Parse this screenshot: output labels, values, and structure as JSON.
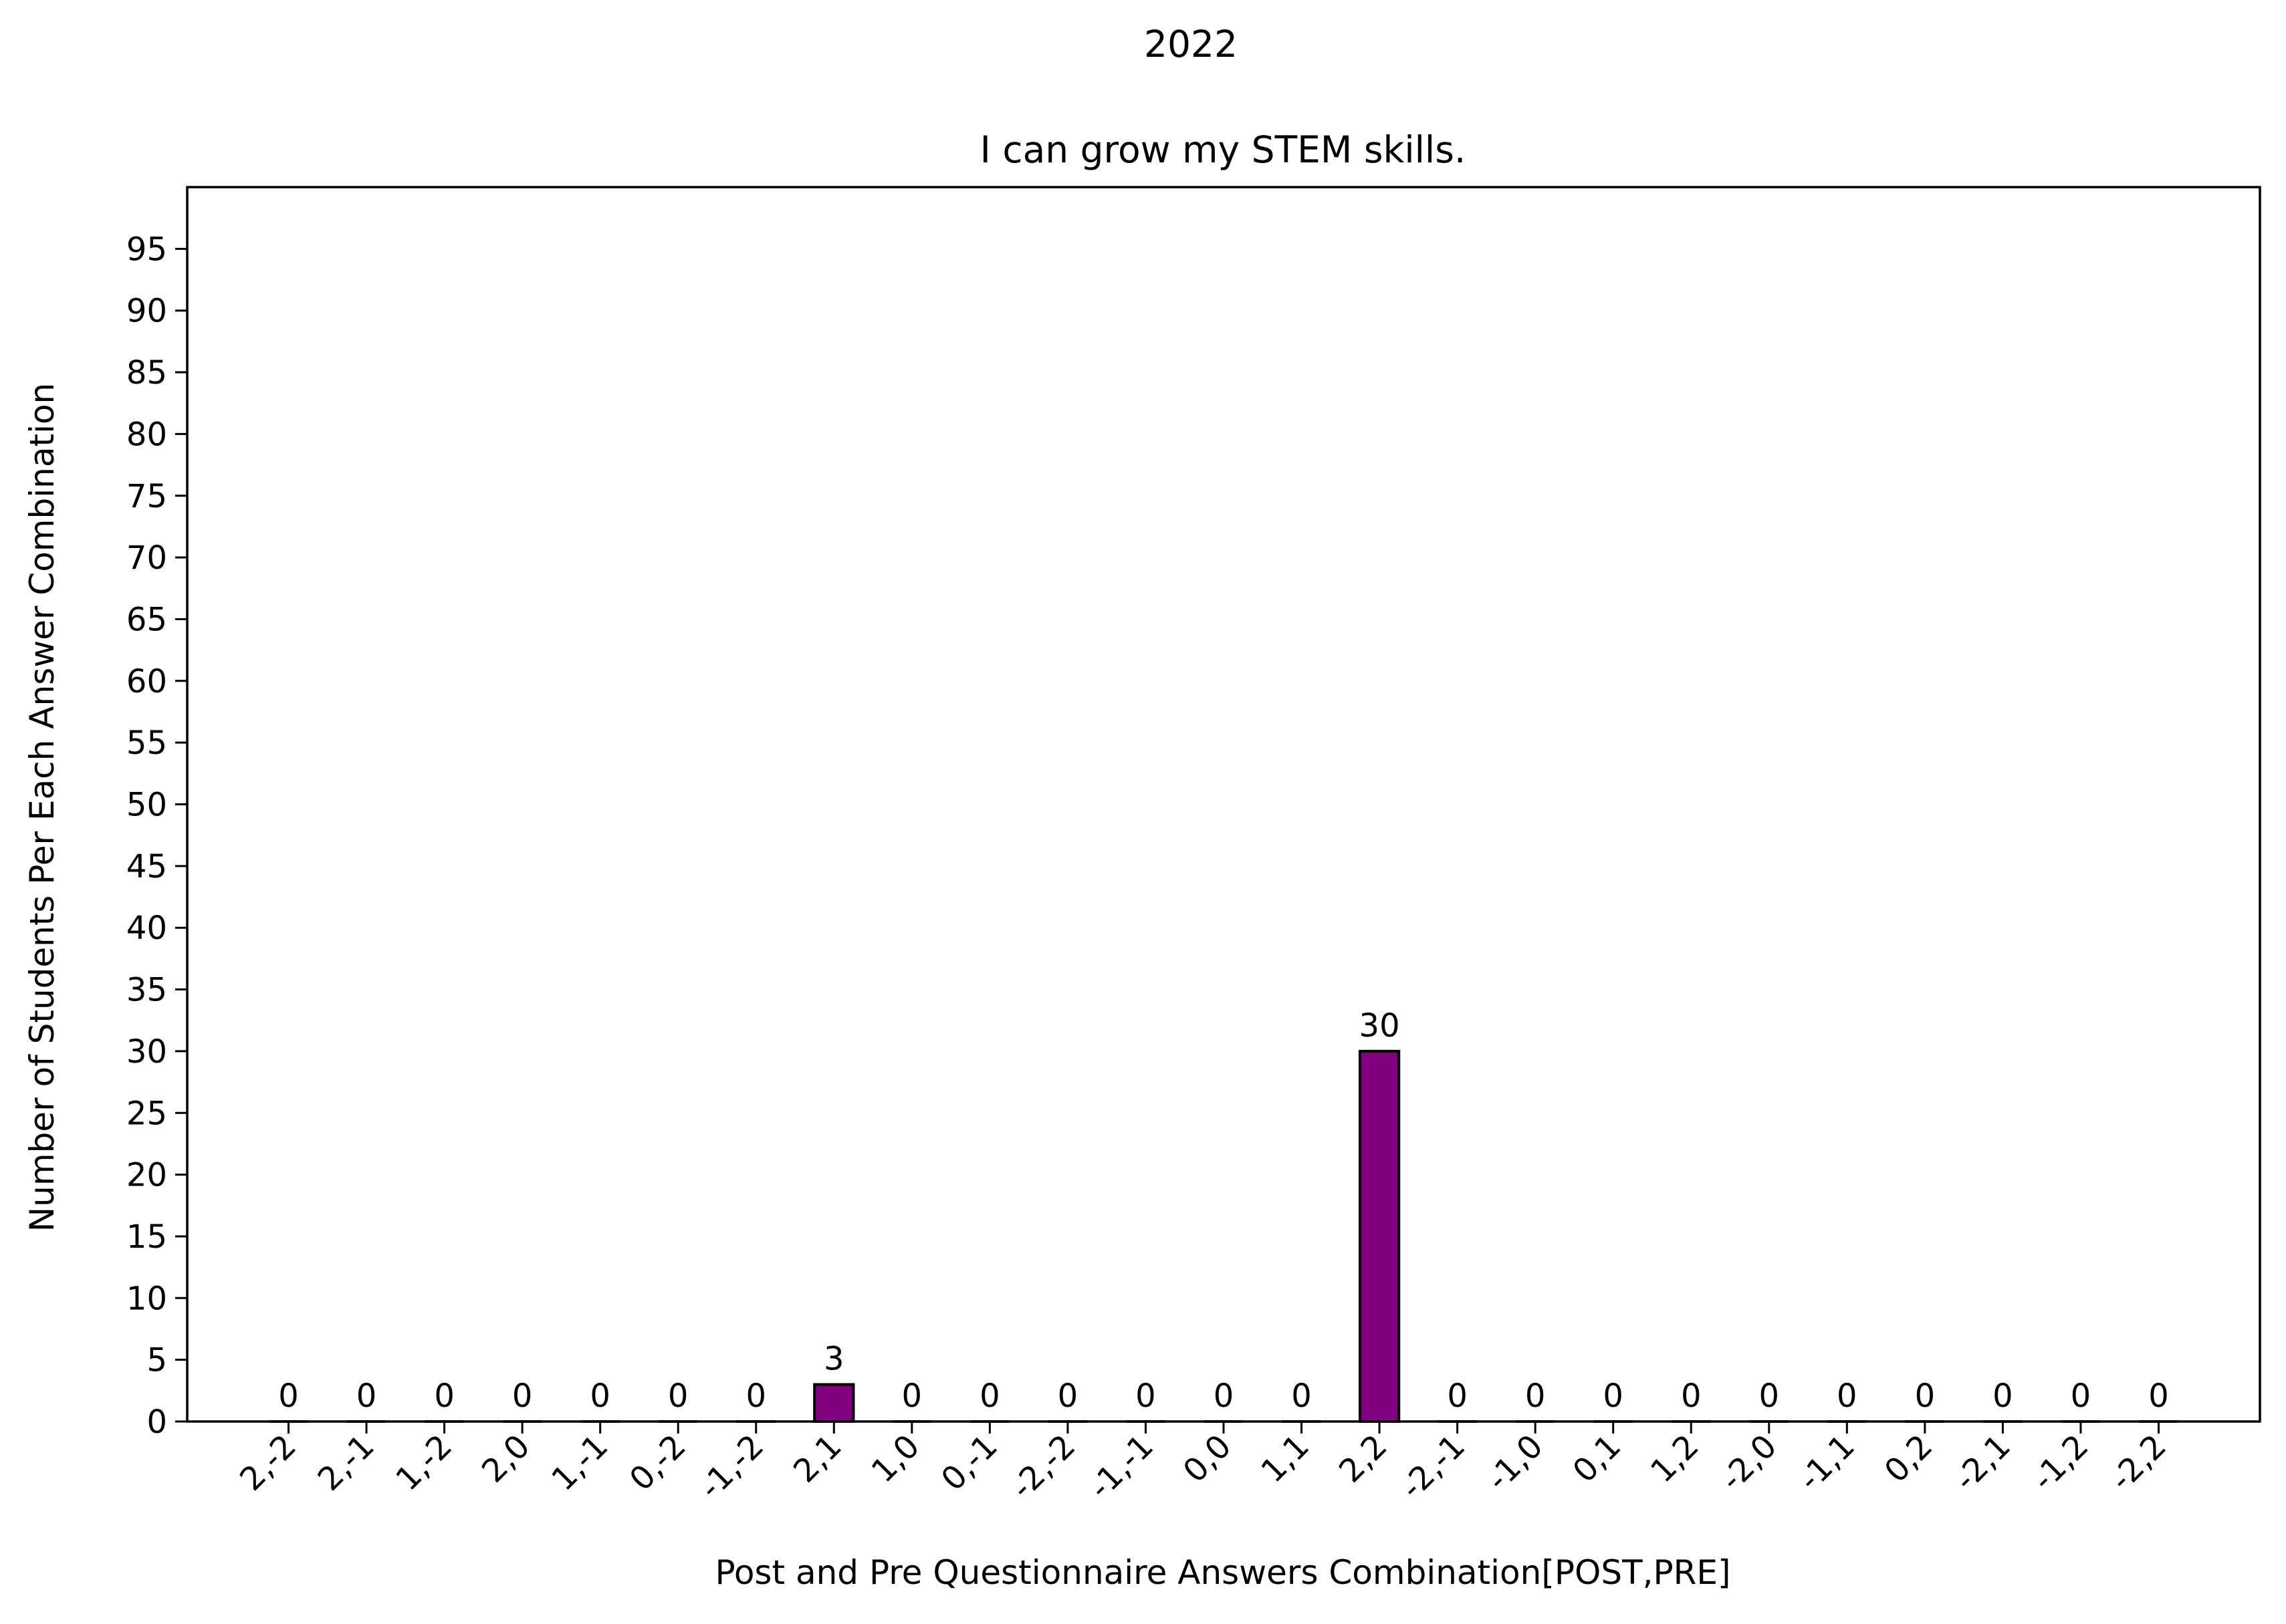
{
  "chart_data": {
    "type": "bar",
    "suptitle": "2022",
    "title": "I can grow my STEM skills.",
    "xlabel": "Post and Pre Questionnaire Answers Combination[POST,PRE]",
    "ylabel": "Number of Students Per Each Answer Combination",
    "categories": [
      "2,-2",
      "2,-1",
      "1,-2",
      "2,0",
      "1,-1",
      "0,-2",
      "-1,-2",
      "2,1",
      "1,0",
      "0,-1",
      "-2,-2",
      "-1,-1",
      "0,0",
      "1,1",
      "2,2",
      "-2,-1",
      "-1,0",
      "0,1",
      "1,2",
      "-2,0",
      "-1,1",
      "0,2",
      "-2,1",
      "-1,2",
      "-2,2"
    ],
    "values": [
      0,
      0,
      0,
      0,
      0,
      0,
      0,
      3,
      0,
      0,
      0,
      0,
      0,
      0,
      30,
      0,
      0,
      0,
      0,
      0,
      0,
      0,
      0,
      0,
      0
    ],
    "data_labels": [
      "0",
      "0",
      "0",
      "0",
      "0",
      "0",
      "0",
      "3",
      "0",
      "0",
      "0",
      "0",
      "0",
      "0",
      "30",
      "0",
      "0",
      "0",
      "0",
      "0",
      "0",
      "0",
      "0",
      "0",
      "0"
    ],
    "ylim": [
      0,
      100
    ],
    "yticks": [
      0,
      5,
      10,
      15,
      20,
      25,
      30,
      35,
      40,
      45,
      50,
      55,
      60,
      65,
      70,
      75,
      80,
      85,
      90,
      95
    ],
    "grid": false,
    "legend": "none",
    "bar_color": "#800080",
    "edge_color": "#000000"
  }
}
